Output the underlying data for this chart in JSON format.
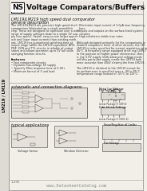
{
  "bg_color": "#e8e4de",
  "page_bg": "#f2efe9",
  "title": "Voltage Comparators/Buffers",
  "subtitle": "LM119/LM219 high speed dual comparator",
  "subtitle2": "general description",
  "section_schematic": "schematic and connection diagrams",
  "section_apps": "typical applications",
  "watermark": "www.DatasheetCatalog.com",
  "side_text": "LM219 / LM119",
  "fig_width": 1.8,
  "fig_height": 2.4,
  "dpi": 100,
  "border_color": "#999999",
  "text_dark": "#111111",
  "text_mid": "#333333",
  "text_light": "#666666",
  "line_color": "#777777",
  "circuit_fill": "#dedad4",
  "circuit_edge": "#444444"
}
